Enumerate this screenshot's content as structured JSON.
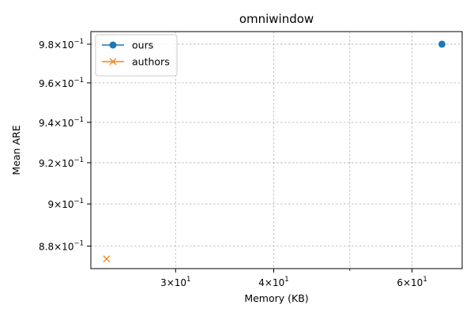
{
  "chart_data": {
    "type": "scatter",
    "title": "omniwindow",
    "xlabel": "Memory (KB)",
    "ylabel": "Mean ARE",
    "xscale": "log",
    "yscale": "log",
    "xlim": [
      23.4,
      69.5
    ],
    "ylim": [
      0.8695,
      0.9866
    ],
    "x_ticks": [
      {
        "value": 30,
        "label_base": "3",
        "label_exp": "1"
      },
      {
        "value": 40,
        "label_base": "4",
        "label_exp": "1"
      },
      {
        "value": 60,
        "label_base": "6",
        "label_exp": "1"
      }
    ],
    "x_minor_ticks": [
      50
    ],
    "y_ticks": [
      {
        "value": 0.88,
        "label_base": "8.8",
        "label_exp": "−1"
      },
      {
        "value": 0.9,
        "label_base": "9",
        "label_exp": "−1"
      },
      {
        "value": 0.92,
        "label_base": "9.2",
        "label_exp": "−1"
      },
      {
        "value": 0.94,
        "label_base": "9.4",
        "label_exp": "−1"
      },
      {
        "value": 0.96,
        "label_base": "9.6",
        "label_exp": "−1"
      },
      {
        "value": 0.98,
        "label_base": "9.8",
        "label_exp": "−1"
      }
    ],
    "grid": true,
    "legend_position": "top-left",
    "series": [
      {
        "name": "ours",
        "color": "#1f77b4",
        "marker": "circle",
        "points": [
          {
            "x": 65.5,
            "y": 0.98
          }
        ]
      },
      {
        "name": "authors",
        "color": "#ff7f0e",
        "marker": "x",
        "points": [
          {
            "x": 24.5,
            "y": 0.874
          }
        ]
      }
    ]
  }
}
